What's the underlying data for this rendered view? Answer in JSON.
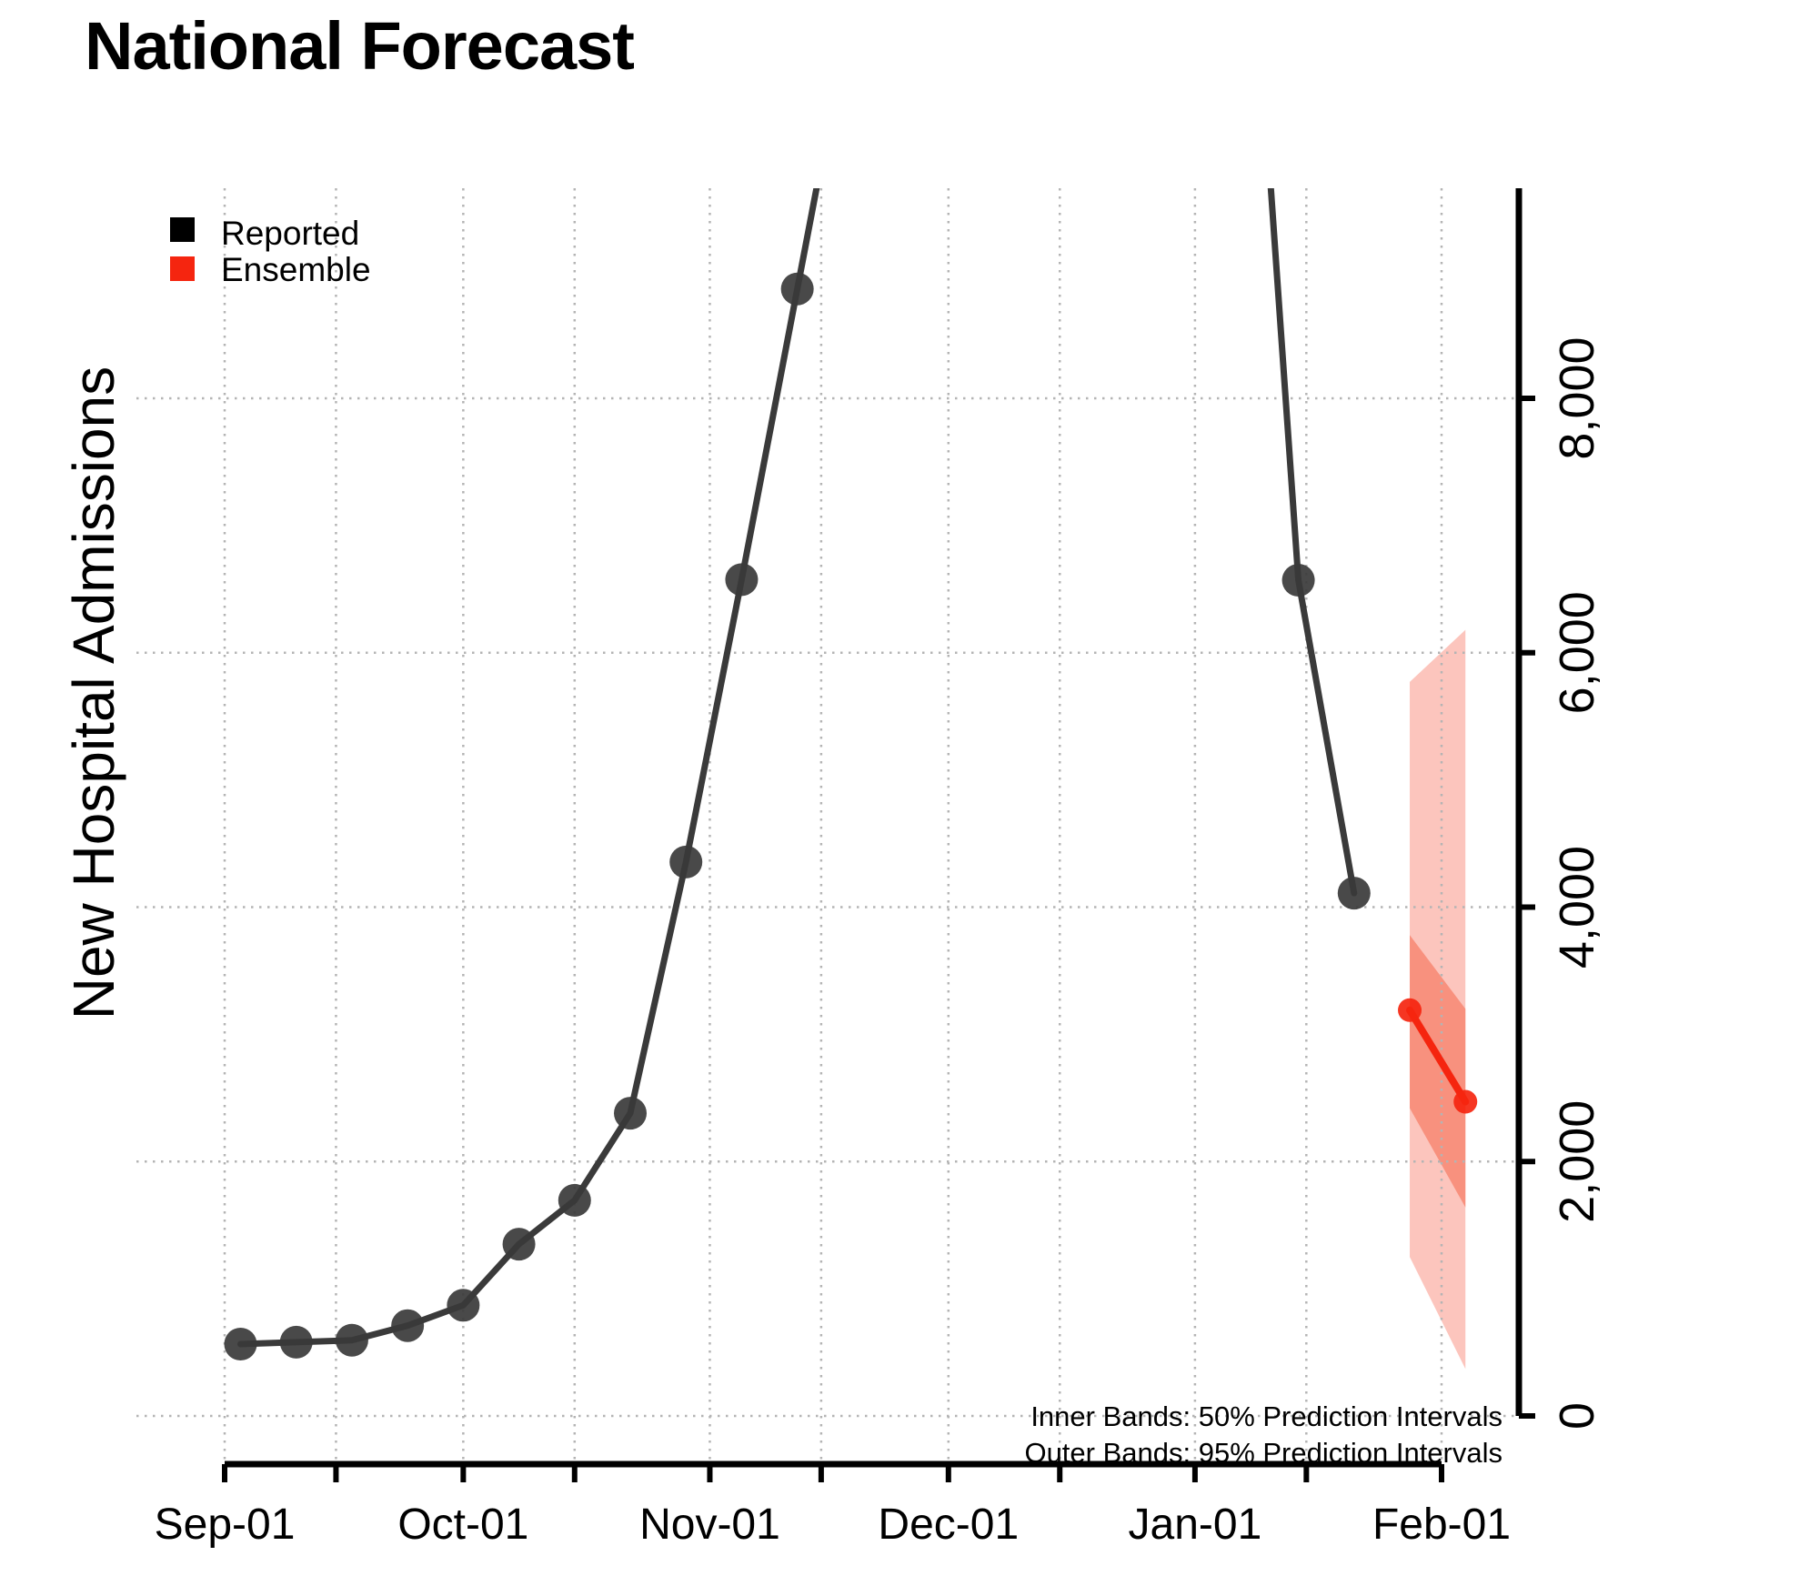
{
  "page": {
    "background": "#ffffff"
  },
  "title": "National Forecast",
  "y_axis_title": "New Hospital Admissions",
  "legend": {
    "items": [
      {
        "label": "Reported",
        "color": "#000000"
      },
      {
        "label": "Ensemble",
        "color": "#f5250f"
      }
    ]
  },
  "annotations": {
    "inner_bands": "Inner Bands: 50% Prediction Intervals",
    "outer_bands": "Outer Bands: 95% Prediction Intervals"
  },
  "chart_data": {
    "type": "line",
    "title": "National Forecast",
    "ylabel": "New Hospital Admissions",
    "xlabel": "",
    "grid": true,
    "y_axis_side": "right",
    "legend_position": "top-left",
    "ylim": [
      0,
      9650
    ],
    "y_ticks": [
      0,
      2000,
      4000,
      6000,
      8000
    ],
    "y_tick_labels": [
      "0",
      "2,000",
      "4,000",
      "6,000",
      "8,000"
    ],
    "x_tick_labels": [
      "Sep-01",
      "Oct-01",
      "Nov-01",
      "Dec-01",
      "Jan-01",
      "Feb-01"
    ],
    "x_tick_days": [
      0,
      30,
      61,
      91,
      122,
      153
    ],
    "x_minor_tick_days": [
      14,
      44,
      75,
      105,
      136
    ],
    "x_unit": "days since Sep-01, weekly reported values",
    "colors": {
      "reported": "#3a3a3a",
      "ensemble": "#f5250f",
      "outer_band": "#fcc5bd",
      "inner_band": "#f8917e",
      "grid": "#b4b4b4"
    },
    "series": [
      {
        "name": "Reported",
        "color": "#3a3a3a",
        "line_width": 7,
        "marker_radius": 18,
        "points": [
          {
            "date": "Sep-03",
            "day": 2,
            "value": 565
          },
          {
            "date": "Sep-10",
            "day": 9,
            "value": 580
          },
          {
            "date": "Sep-17",
            "day": 16,
            "value": 595
          },
          {
            "date": "Sep-24",
            "day": 23,
            "value": 710
          },
          {
            "date": "Oct-01",
            "day": 30,
            "value": 870
          },
          {
            "date": "Oct-08",
            "day": 37,
            "value": 1350
          },
          {
            "date": "Oct-15",
            "day": 44,
            "value": 1695
          },
          {
            "date": "Oct-22",
            "day": 51,
            "value": 2380
          },
          {
            "date": "Oct-29",
            "day": 58,
            "value": 4355
          },
          {
            "date": "Nov-05",
            "day": 65,
            "value": 6575
          },
          {
            "date": "Nov-12",
            "day": 72,
            "value": 8860
          },
          {
            "date": "Nov-19",
            "day": 79,
            "value": 11150,
            "offchart": true
          },
          {
            "date": "Jan-07",
            "day": 128,
            "value": 12800,
            "offchart": true
          },
          {
            "date": "Jan-14",
            "day": 135,
            "value": 6570
          },
          {
            "date": "Jan-21",
            "day": 142,
            "value": 4110
          }
        ]
      },
      {
        "name": "Ensemble",
        "color": "#f5250f",
        "line_width": 8,
        "marker_radius": 13,
        "points": [
          {
            "date": "Jan-28",
            "day": 149,
            "value": 3190
          },
          {
            "date": "Feb-04",
            "day": 156,
            "value": 2470
          }
        ]
      }
    ],
    "prediction_intervals": {
      "inner_label": "Inner Bands: 50% Prediction Intervals",
      "outer_label": "Outer Bands: 95% Prediction Intervals",
      "intervals": [
        {
          "date": "Jan-28",
          "day": 149,
          "p50": [
            2420,
            3780
          ],
          "p95": [
            1250,
            5770
          ]
        },
        {
          "date": "Feb-04",
          "day": 156,
          "p50": [
            1640,
            3200
          ],
          "p95": [
            370,
            6180
          ]
        }
      ]
    }
  }
}
